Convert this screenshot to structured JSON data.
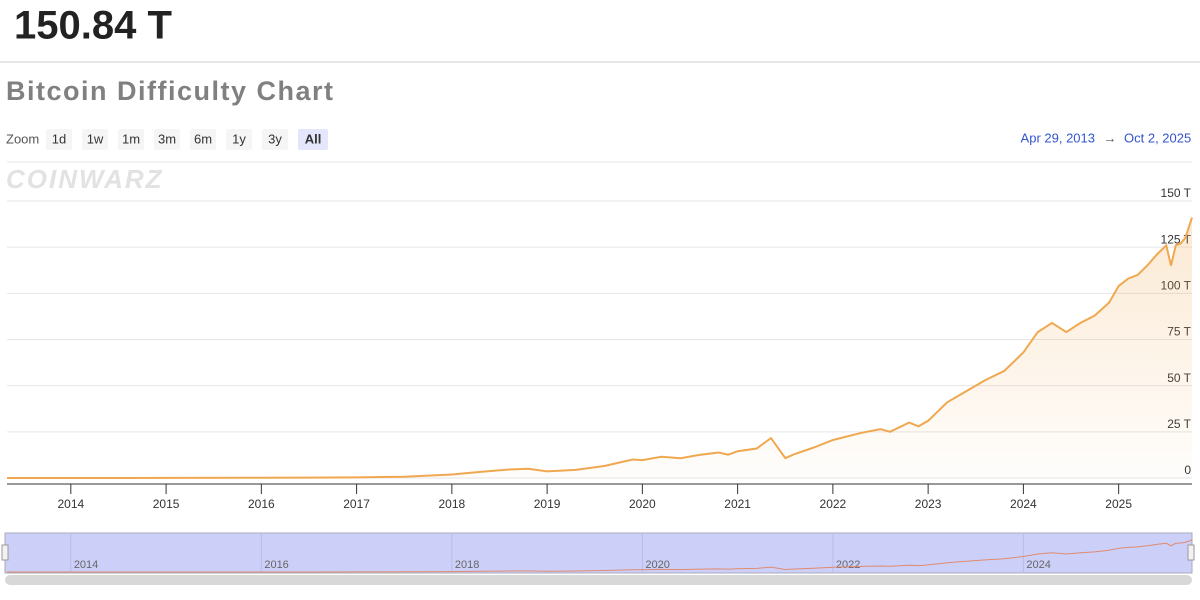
{
  "header": {
    "value": "150.84 T"
  },
  "title": "Bitcoin Difficulty Chart",
  "zoom": {
    "label": "Zoom",
    "buttons": [
      "1d",
      "1w",
      "1m",
      "3m",
      "6m",
      "1y",
      "3y",
      "All"
    ],
    "active": "All"
  },
  "range": {
    "from": "Apr 29, 2013",
    "arrow": "→",
    "to": "Oct 2, 2025"
  },
  "watermark": "COINWARZ",
  "chart_data": {
    "type": "line",
    "x": [
      2013.33,
      2014,
      2015,
      2016,
      2016.5,
      2017,
      2017.5,
      2018,
      2018.3,
      2018.6,
      2018.8,
      2019.0,
      2019.3,
      2019.6,
      2019.9,
      2020.0,
      2020.2,
      2020.4,
      2020.6,
      2020.8,
      2020.9,
      2021.0,
      2021.2,
      2021.35,
      2021.5,
      2021.6,
      2021.8,
      2022.0,
      2022.3,
      2022.5,
      2022.6,
      2022.8,
      2022.9,
      2023.0,
      2023.2,
      2023.4,
      2023.6,
      2023.8,
      2024.0,
      2024.15,
      2024.3,
      2024.45,
      2024.6,
      2024.75,
      2024.9,
      2025.0,
      2025.1,
      2025.2,
      2025.3,
      2025.4,
      2025.5,
      2025.55,
      2025.6,
      2025.65,
      2025.7,
      2025.77
    ],
    "series": [
      {
        "name": "Difficulty",
        "color": "#f0a850",
        "values": [
          0.01,
          0.002,
          0.04,
          0.1,
          0.2,
          0.3,
          0.7,
          1.9,
          3.3,
          4.6,
          5.0,
          3.6,
          4.4,
          6.5,
          10.0,
          9.7,
          11.5,
          10.7,
          12.5,
          13.8,
          12.6,
          14.5,
          16.0,
          21.6,
          10.8,
          13.0,
          16.5,
          20.6,
          24.5,
          26.5,
          25.0,
          30.0,
          28.0,
          31.0,
          41.0,
          47.0,
          53.0,
          58.0,
          68.0,
          79.0,
          84.0,
          79.0,
          84.0,
          88.0,
          95.0,
          104.0,
          108.0,
          110.0,
          115.0,
          121.0,
          126.0,
          115.0,
          126.0,
          127.0,
          130.0,
          141.0
        ]
      }
    ],
    "xlim": [
      2013.33,
      2025.77
    ],
    "ylim": [
      0,
      150
    ],
    "xticks": [
      2014,
      2015,
      2016,
      2017,
      2018,
      2019,
      2020,
      2021,
      2022,
      2023,
      2024,
      2025
    ],
    "yticks": [
      0,
      {
        "value": 25,
        "label": "25 T"
      },
      {
        "value": 50,
        "label": "50 T"
      },
      {
        "value": 75,
        "label": "75 T"
      },
      {
        "value": 100,
        "label": "100 T"
      },
      {
        "value": 125,
        "label": "125 T"
      },
      {
        "value": 150,
        "label": "150 T"
      }
    ],
    "navigator_ticks": [
      2014,
      2016,
      2018,
      2020,
      2022,
      2024
    ],
    "grid": true
  }
}
